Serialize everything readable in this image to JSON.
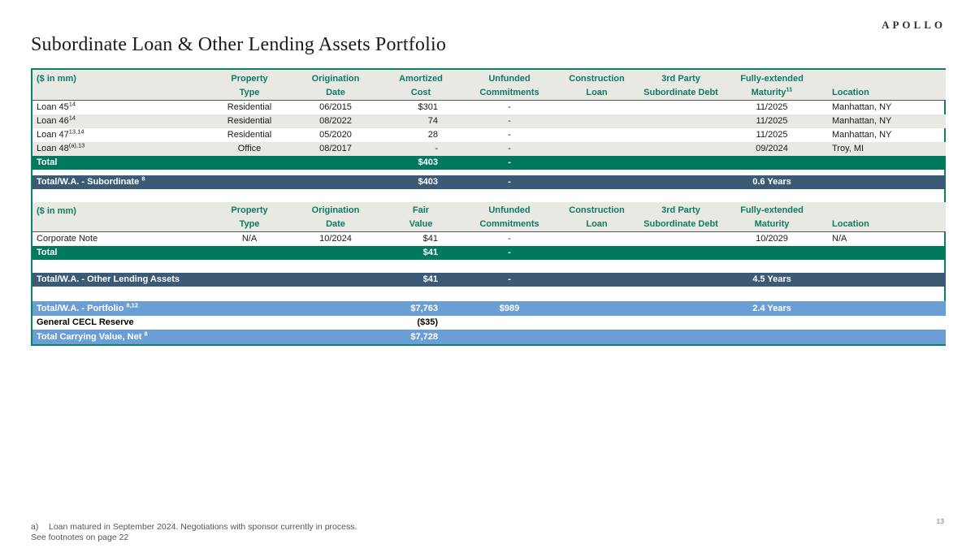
{
  "brand": {
    "logo": "APOLLO"
  },
  "title": "Subordinate Loan & Other Lending Assets Portfolio",
  "page_number": "13",
  "colors": {
    "teal_border": "#0f8068",
    "header_text": "#0e7a66",
    "header_bg": "#e9e9e4",
    "row_alt_bg": "#e9e9e4",
    "total_green": "#00795f",
    "total_dark_blue": "#3b5a76",
    "total_light_blue": "#6c9ed6"
  },
  "subordinate_table": {
    "unit_label": "($ in mm)",
    "columns": [
      {
        "line1": "Property",
        "line2": "Type"
      },
      {
        "line1": "Origination",
        "line2": "Date"
      },
      {
        "line1": "Amortized",
        "line2": "Cost"
      },
      {
        "line1": "Unfunded",
        "line2": "Commitments"
      },
      {
        "line1": "Construction",
        "line2": "Loan"
      },
      {
        "line1": "3rd Party",
        "line2": "Subordinate Debt"
      },
      {
        "line1": "Fully-extended",
        "line2": "Maturity",
        "line2_sup": "11"
      },
      {
        "line1": "",
        "line2": "Location"
      }
    ],
    "rows": [
      {
        "label": "Loan 45",
        "sup": "14",
        "property_type": "Residential",
        "origination_date": "06/2015",
        "amortized_cost": "$301",
        "unfunded": "-",
        "maturity": "11/2025",
        "location": "Manhattan, NY"
      },
      {
        "label": "Loan 46",
        "sup": "14",
        "property_type": "Residential",
        "origination_date": "08/2022",
        "amortized_cost": "74",
        "unfunded": "-",
        "maturity": "11/2025",
        "location": "Manhattan, NY"
      },
      {
        "label": "Loan 47",
        "sup": "13,14",
        "property_type": "Residential",
        "origination_date": "05/2020",
        "amortized_cost": "28",
        "unfunded": "-",
        "maturity": "11/2025",
        "location": "Manhattan, NY"
      },
      {
        "label": "Loan 48",
        "sup": "(a),13",
        "property_type": "Office",
        "origination_date": "08/2017",
        "amortized_cost": "-",
        "unfunded": "-",
        "maturity": "09/2024",
        "location": "Troy, MI"
      }
    ],
    "total": {
      "label": "Total",
      "amortized_cost": "$403",
      "unfunded": "-"
    },
    "wa": {
      "label": "Total/W.A. - Subordinate",
      "sup": "8",
      "amount": "$403",
      "unfunded": "-",
      "maturity": "0.6 Years"
    }
  },
  "other_lending_table": {
    "unit_label": "($ in mm)",
    "columns": [
      {
        "line1": "Property",
        "line2": "Type"
      },
      {
        "line1": "Origination",
        "line2": "Date"
      },
      {
        "line1": "Fair",
        "line2": "Value"
      },
      {
        "line1": "Unfunded",
        "line2": "Commitments"
      },
      {
        "line1": "Construction",
        "line2": "Loan"
      },
      {
        "line1": "3rd Party",
        "line2": "Subordinate Debt"
      },
      {
        "line1": "Fully-extended",
        "line2": "Maturity"
      },
      {
        "line1": "",
        "line2": "Location"
      }
    ],
    "rows": [
      {
        "label": "Corporate Note",
        "property_type": "N/A",
        "origination_date": "10/2024",
        "fair_value": "$41",
        "unfunded": "-",
        "maturity": "10/2029",
        "location": "N/A"
      }
    ],
    "total": {
      "label": "Total",
      "fair_value": "$41",
      "unfunded": "-"
    },
    "wa": {
      "label": "Total/W.A. - Other Lending Assets",
      "amount": "$41",
      "unfunded": "-",
      "maturity": "4.5 Years"
    }
  },
  "portfolio_summary": {
    "portfolio": {
      "label": "Total/W.A. - Portfolio",
      "sup": "8,12",
      "amount": "$7,763",
      "unfunded": "$989",
      "maturity": "2.4 Years"
    },
    "cecl": {
      "label": "General CECL Reserve",
      "amount": "($35)"
    },
    "carrying": {
      "label": "Total Carrying Value, Net",
      "sup": "8",
      "amount": "$7,728"
    }
  },
  "footnotes": {
    "marker": "a)",
    "a_text": "Loan matured in September 2024. Negotiations with sponsor currently in process.",
    "see": "See footnotes on page 22"
  }
}
